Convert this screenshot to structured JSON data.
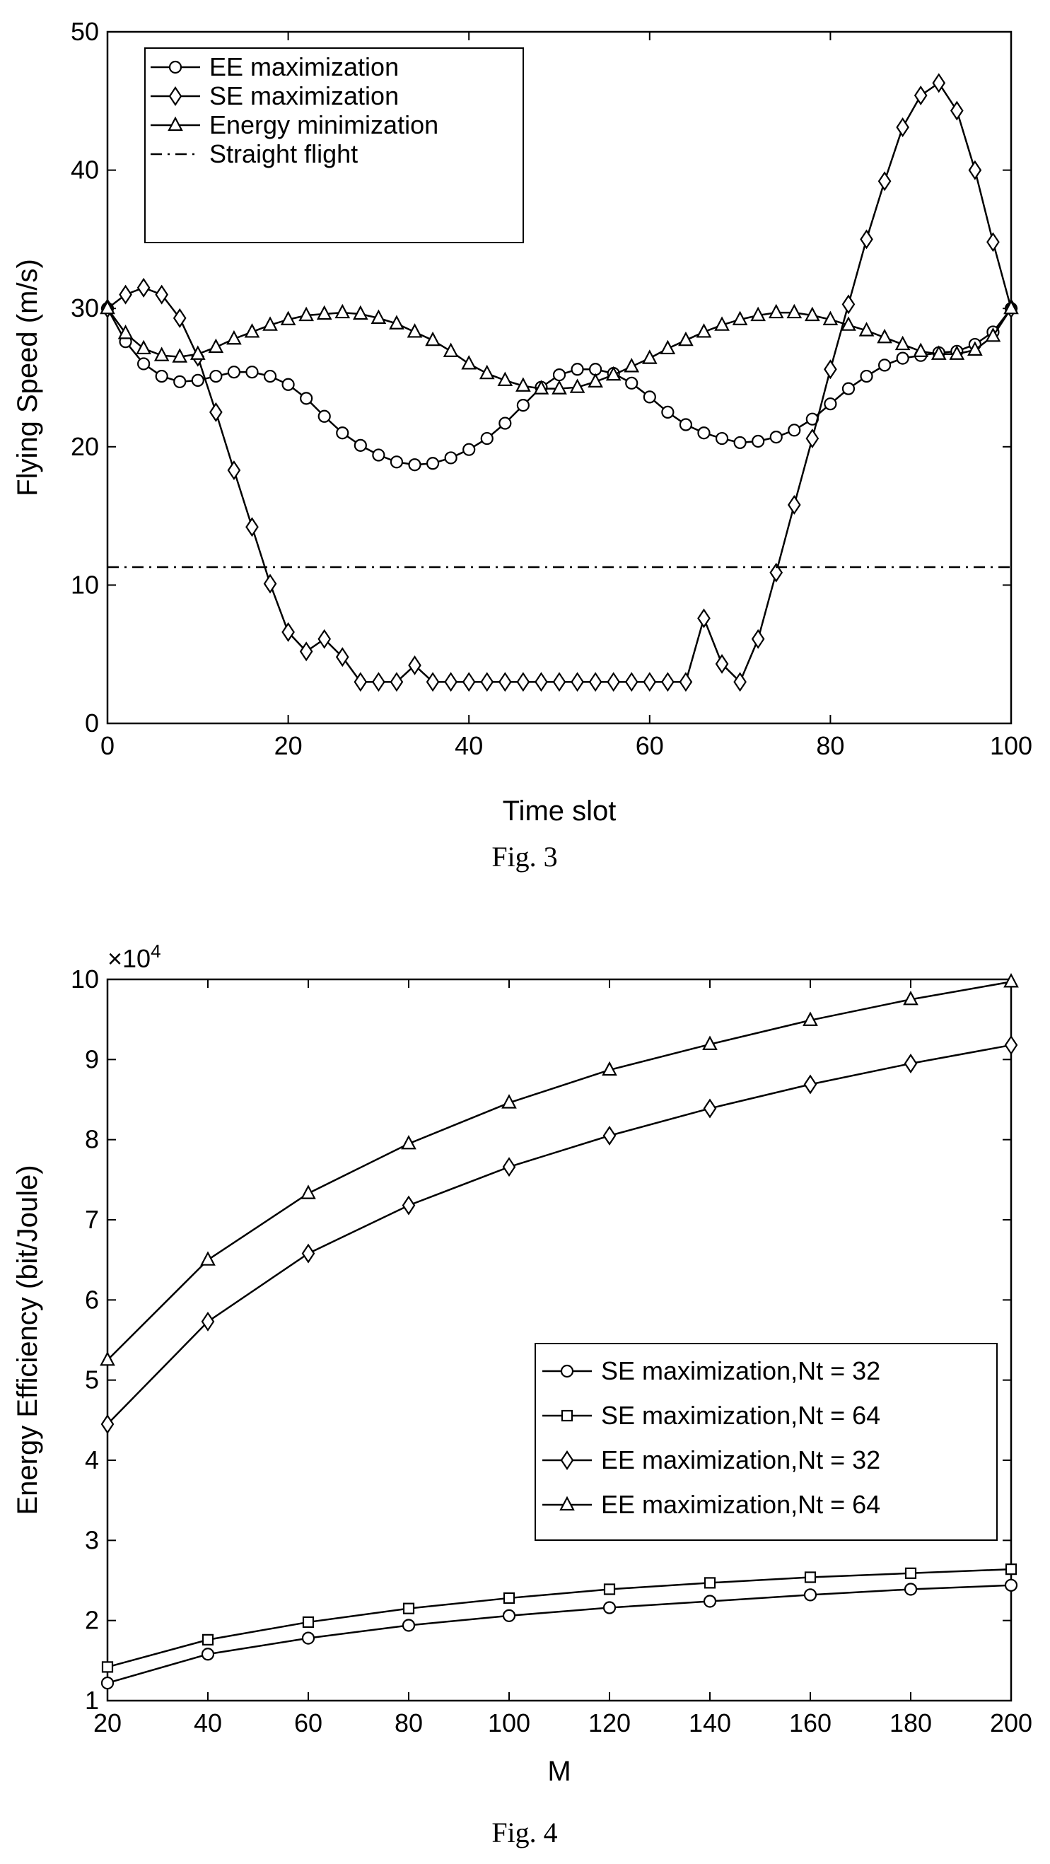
{
  "chart_data": [
    {
      "type": "line",
      "caption": "Fig. 3",
      "xlabel": "Time slot",
      "ylabel": "Flying Speed (m/s)",
      "xlim": [
        0,
        100
      ],
      "ylim": [
        0,
        50
      ],
      "xticks": [
        0,
        20,
        40,
        60,
        80,
        100
      ],
      "yticks": [
        0,
        10,
        20,
        30,
        40,
        50
      ],
      "grid": false,
      "legend_position": "top-left",
      "series": [
        {
          "name": "EE maximization",
          "marker": "circle",
          "x": [
            0,
            2,
            4,
            6,
            8,
            10,
            12,
            14,
            16,
            18,
            20,
            22,
            24,
            26,
            28,
            30,
            32,
            34,
            36,
            38,
            40,
            42,
            44,
            46,
            48,
            50,
            52,
            54,
            56,
            58,
            60,
            62,
            64,
            66,
            68,
            70,
            72,
            74,
            76,
            78,
            80,
            82,
            84,
            86,
            88,
            90,
            92,
            94,
            96,
            98,
            100
          ],
          "y": [
            30,
            27.6,
            26,
            25.1,
            24.7,
            24.8,
            25.1,
            25.4,
            25.4,
            25.1,
            24.5,
            23.5,
            22.2,
            21,
            20.1,
            19.4,
            18.9,
            18.7,
            18.8,
            19.2,
            19.8,
            20.6,
            21.7,
            23,
            24.3,
            25.2,
            25.6,
            25.6,
            25.3,
            24.6,
            23.6,
            22.5,
            21.6,
            21,
            20.6,
            20.3,
            20.4,
            20.7,
            21.2,
            22,
            23.1,
            24.2,
            25.1,
            25.9,
            26.4,
            26.6,
            26.8,
            26.9,
            27.4,
            28.3,
            30
          ]
        },
        {
          "name": "SE maximization",
          "marker": "diamond",
          "x": [
            0,
            2,
            4,
            6,
            8,
            10,
            12,
            14,
            16,
            18,
            20,
            22,
            24,
            26,
            28,
            30,
            32,
            34,
            36,
            38,
            40,
            42,
            44,
            46,
            48,
            50,
            52,
            54,
            56,
            58,
            60,
            62,
            64,
            66,
            68,
            70,
            72,
            74,
            76,
            78,
            80,
            82,
            84,
            86,
            88,
            90,
            92,
            94,
            96,
            98,
            100
          ],
          "y": [
            30,
            31,
            31.5,
            31,
            29.3,
            26.5,
            22.5,
            18.3,
            14.2,
            10.1,
            6.6,
            5.2,
            6.1,
            4.8,
            3,
            3,
            3,
            4.2,
            3,
            3,
            3,
            3,
            3,
            3,
            3,
            3,
            3,
            3,
            3,
            3,
            3,
            3,
            3,
            7.6,
            4.3,
            3,
            6.1,
            10.9,
            15.8,
            20.6,
            25.6,
            30.3,
            35,
            39.2,
            43.1,
            45.4,
            46.3,
            44.3,
            40,
            34.8,
            30
          ]
        },
        {
          "name": "Energy minimization",
          "marker": "triangle",
          "x": [
            0,
            2,
            4,
            6,
            8,
            10,
            12,
            14,
            16,
            18,
            20,
            22,
            24,
            26,
            28,
            30,
            32,
            34,
            36,
            38,
            40,
            42,
            44,
            46,
            48,
            50,
            52,
            54,
            56,
            58,
            60,
            62,
            64,
            66,
            68,
            70,
            72,
            74,
            76,
            78,
            80,
            82,
            84,
            86,
            88,
            90,
            92,
            94,
            96,
            98,
            100
          ],
          "y": [
            30,
            28.2,
            27.1,
            26.6,
            26.5,
            26.7,
            27.2,
            27.8,
            28.3,
            28.8,
            29.2,
            29.5,
            29.6,
            29.7,
            29.6,
            29.3,
            28.9,
            28.3,
            27.7,
            26.9,
            26,
            25.3,
            24.8,
            24.4,
            24.2,
            24.2,
            24.3,
            24.7,
            25.2,
            25.8,
            26.4,
            27.1,
            27.7,
            28.3,
            28.8,
            29.2,
            29.5,
            29.7,
            29.7,
            29.5,
            29.2,
            28.8,
            28.4,
            27.9,
            27.4,
            26.9,
            26.7,
            26.7,
            27,
            28,
            30
          ]
        },
        {
          "name": "Straight flight",
          "marker": "none",
          "dash": "dashdot",
          "x": [
            0,
            100
          ],
          "y": [
            11.3,
            11.3
          ]
        }
      ]
    },
    {
      "type": "line",
      "caption": "Fig. 4",
      "xlabel": "M",
      "ylabel": "Energy Efficiency (bit/Joule)",
      "exponent_label": "×10",
      "exponent_power": "4",
      "xlim": [
        20,
        200
      ],
      "ylim": [
        1,
        10
      ],
      "xticks": [
        20,
        40,
        60,
        80,
        100,
        120,
        140,
        160,
        180,
        200
      ],
      "yticks": [
        1,
        2,
        3,
        4,
        5,
        6,
        7,
        8,
        9,
        10
      ],
      "grid": false,
      "legend_position": "bottom-right",
      "series": [
        {
          "name": "SE maximization,Nt = 32",
          "marker": "circle",
          "x": [
            20,
            40,
            60,
            80,
            100,
            120,
            140,
            160,
            180,
            200
          ],
          "y": [
            1.22,
            1.58,
            1.78,
            1.94,
            2.06,
            2.16,
            2.24,
            2.32,
            2.39,
            2.44
          ]
        },
        {
          "name": "SE maximization,Nt = 64",
          "marker": "square",
          "x": [
            20,
            40,
            60,
            80,
            100,
            120,
            140,
            160,
            180,
            200
          ],
          "y": [
            1.42,
            1.76,
            1.98,
            2.15,
            2.28,
            2.39,
            2.47,
            2.54,
            2.59,
            2.64
          ]
        },
        {
          "name": "EE maximization,Nt = 32",
          "marker": "diamond",
          "x": [
            20,
            40,
            60,
            80,
            100,
            120,
            140,
            160,
            180,
            200
          ],
          "y": [
            4.45,
            5.73,
            6.58,
            7.18,
            7.66,
            8.05,
            8.39,
            8.69,
            8.95,
            9.18
          ]
        },
        {
          "name": "EE maximization,Nt = 64",
          "marker": "triangle",
          "x": [
            20,
            40,
            60,
            80,
            100,
            120,
            140,
            160,
            180,
            200
          ],
          "y": [
            5.25,
            6.5,
            7.33,
            7.95,
            8.46,
            8.87,
            9.19,
            9.49,
            9.75,
            9.97
          ]
        }
      ]
    }
  ]
}
